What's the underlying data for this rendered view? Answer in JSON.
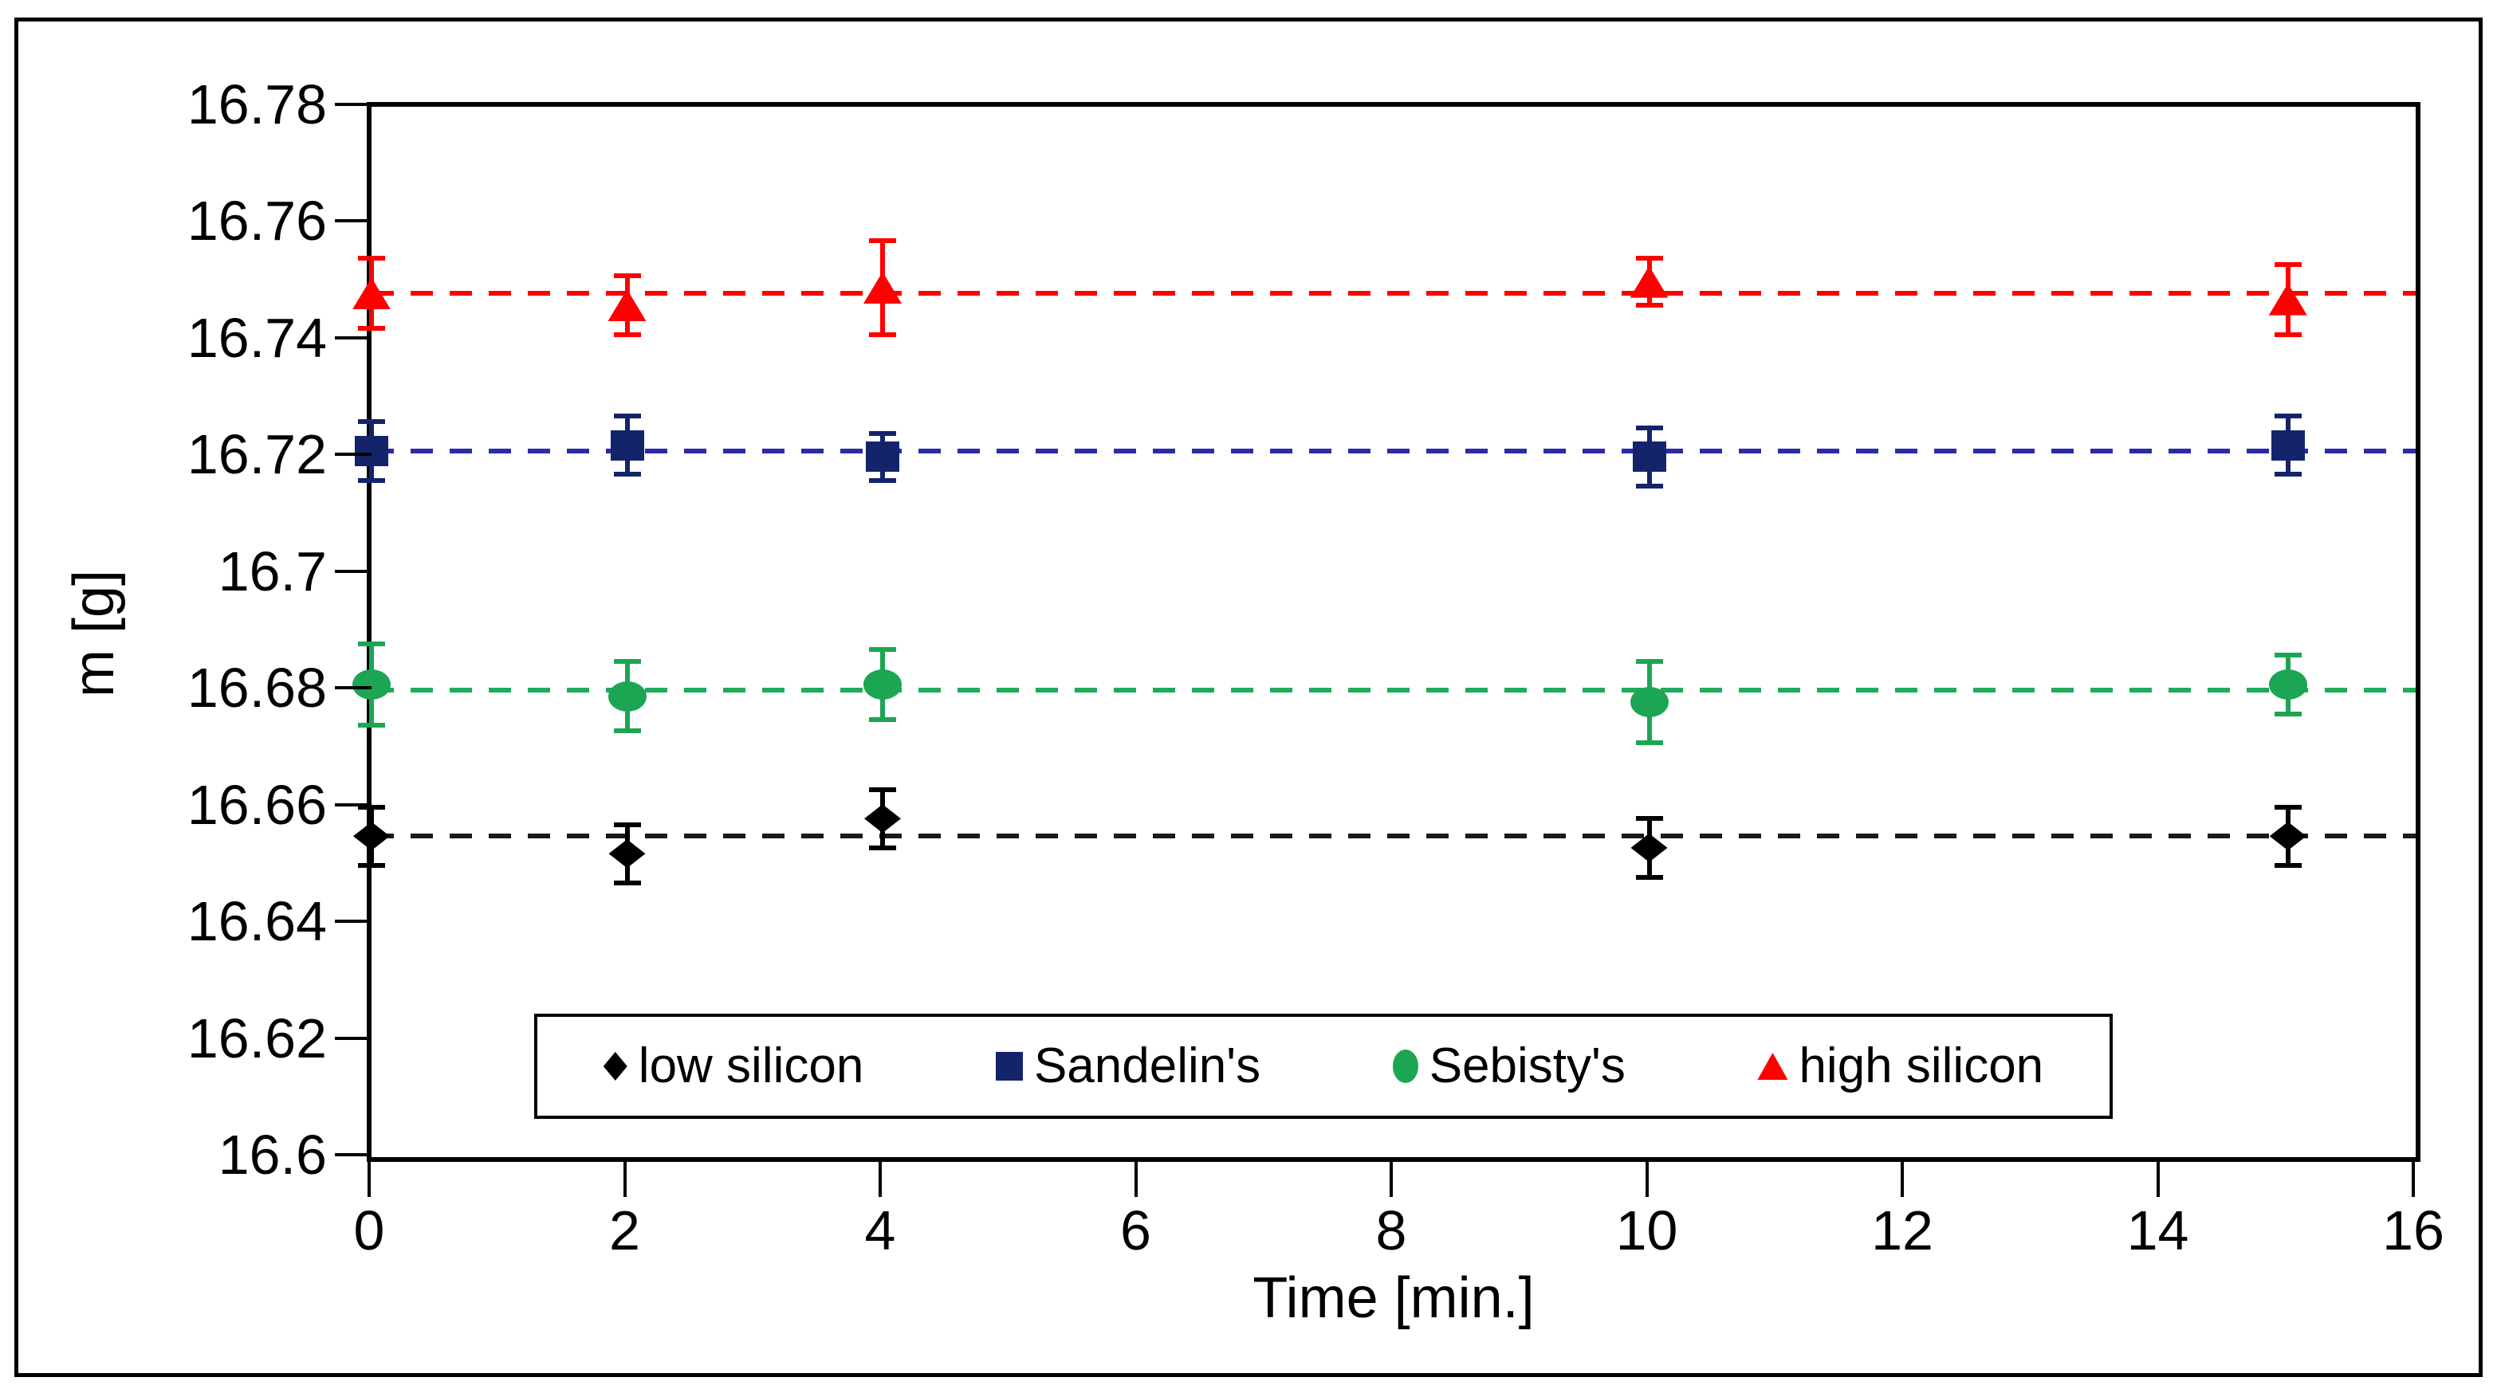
{
  "figure": {
    "background": "#ffffff",
    "border_color": "#000000"
  },
  "chart_data": {
    "type": "scatter",
    "title": "",
    "xlabel": "Time [min.]",
    "ylabel": "m [g]",
    "xlim": [
      0,
      16
    ],
    "ylim": [
      16.6,
      16.78
    ],
    "x_ticks": [
      "0",
      "2",
      "4",
      "6",
      "8",
      "10",
      "12",
      "14",
      "16"
    ],
    "y_ticks": [
      "16.6",
      "16.62",
      "16.64",
      "16.66",
      "16.68",
      "16.7",
      "16.72",
      "16.74",
      "16.76",
      "16.78"
    ],
    "grid": false,
    "legend_position": "bottom-center-inside",
    "x": [
      0,
      2,
      4,
      10,
      15
    ],
    "series": [
      {
        "name": "low silicon",
        "marker": "diamond",
        "color": "#000000",
        "line_color": "#1a1a1a",
        "trend": 16.655,
        "values": [
          16.655,
          16.652,
          16.658,
          16.653,
          16.655
        ],
        "errors": [
          0.005,
          0.005,
          0.005,
          0.005,
          0.005
        ]
      },
      {
        "name": "Sandelin's",
        "marker": "square",
        "color": "#13246b",
        "line_color": "#2b2ba8",
        "trend": 16.721,
        "values": [
          16.721,
          16.722,
          16.72,
          16.72,
          16.722
        ],
        "errors": [
          0.005,
          0.005,
          0.004,
          0.005,
          0.005
        ]
      },
      {
        "name": "Sebisty's",
        "marker": "circle",
        "color": "#1ca653",
        "line_color": "#1fab5c",
        "trend": 16.68,
        "values": [
          16.681,
          16.679,
          16.681,
          16.678,
          16.681
        ],
        "errors": [
          0.007,
          0.006,
          0.006,
          0.007,
          0.005
        ]
      },
      {
        "name": "high silicon",
        "marker": "triangle",
        "color": "#fe0000",
        "line_color": "#ff0000",
        "trend": 16.748,
        "values": [
          16.748,
          16.746,
          16.749,
          16.75,
          16.747
        ],
        "errors": [
          0.006,
          0.005,
          0.008,
          0.004,
          0.006
        ]
      }
    ]
  }
}
